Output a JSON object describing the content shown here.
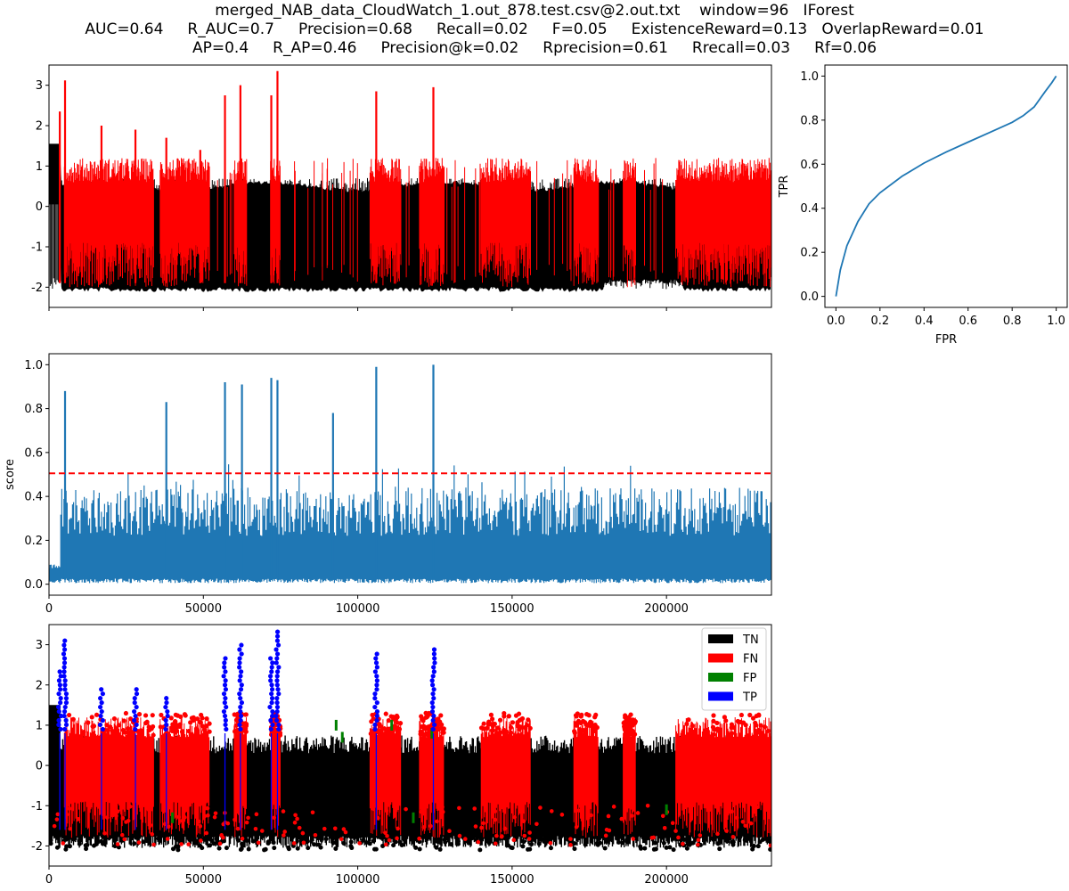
{
  "title_lines": [
    "merged_NAB_data_CloudWatch_1.out_878.test.csv@2.out.txt    window=96   IForest",
    "AUC=0.64     R_AUC=0.7     Precision=0.68     Recall=0.02     F=0.05     ExistenceReward=0.13   OverlapReward=0.01",
    "AP=0.4     R_AP=0.46     Precision@k=0.02     Rprecision=0.61     Rrecall=0.03     Rf=0.06"
  ],
  "colors": {
    "normal": "#000000",
    "anomaly": "#ff0000",
    "score": "#1f77b4",
    "threshold": "#ff0000",
    "roc": "#1f77b4",
    "TN": "#000000",
    "FN": "#ff0000",
    "FP": "#008000",
    "TP": "#0000ff"
  },
  "chart_data": [
    {
      "type": "line",
      "panel": "time-series",
      "xlim": [
        0,
        234000
      ],
      "ylim": [
        -2.5,
        3.5
      ],
      "yticks": [
        -2,
        -1,
        0,
        1,
        2,
        3
      ],
      "xticks": [
        0,
        50000,
        100000,
        150000,
        200000
      ],
      "xticklabels_visible": false,
      "series": [
        {
          "role": "normal",
          "color": "#000000"
        },
        {
          "role": "anomaly",
          "color": "#ff0000"
        }
      ],
      "anomaly_spikes": [
        {
          "x": 3500,
          "y": 2.35
        },
        {
          "x": 5200,
          "y": 3.12
        },
        {
          "x": 17000,
          "y": 2.0
        },
        {
          "x": 28000,
          "y": 1.9
        },
        {
          "x": 38000,
          "y": 1.7
        },
        {
          "x": 49000,
          "y": 1.4
        },
        {
          "x": 57000,
          "y": 2.75
        },
        {
          "x": 62000,
          "y": 3.0
        },
        {
          "x": 72000,
          "y": 2.75
        },
        {
          "x": 74000,
          "y": 3.35
        },
        {
          "x": 106000,
          "y": 2.85
        },
        {
          "x": 124500,
          "y": 2.95
        }
      ]
    },
    {
      "type": "line",
      "panel": "score",
      "xlim": [
        0,
        234000
      ],
      "ylim": [
        -0.05,
        1.05
      ],
      "yticks": [
        0.0,
        0.2,
        0.4,
        0.6,
        0.8,
        1.0
      ],
      "yticklabels": [
        "0.0",
        "0.2",
        "0.4",
        "0.6",
        "0.8",
        "1.0"
      ],
      "xticks": [
        0,
        50000,
        100000,
        150000,
        200000
      ],
      "xticklabels": [
        "0",
        "50000",
        "100000",
        "150000",
        "200000"
      ],
      "ylabel": "score",
      "threshold": 0.505,
      "peaks": [
        {
          "x": 5200,
          "y": 0.88
        },
        {
          "x": 38000,
          "y": 0.83
        },
        {
          "x": 57000,
          "y": 0.92
        },
        {
          "x": 62500,
          "y": 0.91
        },
        {
          "x": 72000,
          "y": 0.94
        },
        {
          "x": 74000,
          "y": 0.93
        },
        {
          "x": 92000,
          "y": 0.78
        },
        {
          "x": 106000,
          "y": 0.99
        },
        {
          "x": 124500,
          "y": 1.0
        }
      ]
    },
    {
      "type": "scatter",
      "panel": "classification",
      "xlim": [
        0,
        234000
      ],
      "ylim": [
        -2.5,
        3.5
      ],
      "yticks": [
        -2,
        -1,
        0,
        1,
        2,
        3
      ],
      "xticks": [
        0,
        50000,
        100000,
        150000,
        200000
      ],
      "xticklabels": [
        "0",
        "50000",
        "100000",
        "150000",
        "200000"
      ],
      "legend": {
        "placement": "top-right",
        "entries": [
          "TN",
          "FN",
          "FP",
          "TP"
        ]
      }
    },
    {
      "type": "line",
      "panel": "roc",
      "xlabel": "FPR",
      "ylabel": "TPR",
      "xlim": [
        -0.05,
        1.05
      ],
      "ylim": [
        -0.05,
        1.05
      ],
      "xticks": [
        0.0,
        0.2,
        0.4,
        0.6,
        0.8,
        1.0
      ],
      "yticks": [
        0.0,
        0.2,
        0.4,
        0.6,
        0.8,
        1.0
      ],
      "ticklabels": [
        "0.0",
        "0.2",
        "0.4",
        "0.6",
        "0.8",
        "1.0"
      ],
      "x": [
        0.0,
        0.02,
        0.05,
        0.1,
        0.15,
        0.2,
        0.3,
        0.4,
        0.5,
        0.6,
        0.7,
        0.8,
        0.85,
        0.9,
        0.95,
        0.98,
        1.0
      ],
      "y": [
        0.0,
        0.12,
        0.23,
        0.34,
        0.42,
        0.47,
        0.545,
        0.605,
        0.655,
        0.7,
        0.745,
        0.79,
        0.82,
        0.86,
        0.93,
        0.97,
        1.0
      ]
    }
  ]
}
